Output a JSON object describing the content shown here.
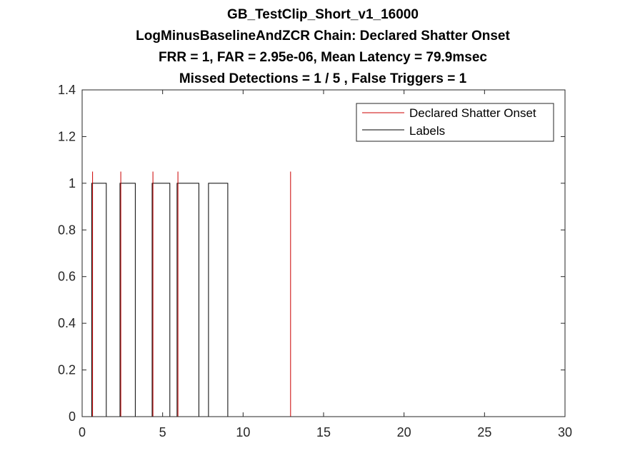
{
  "chart_data": {
    "type": "line",
    "title": [
      "GB_TestClip_Short_v1_16000",
      "LogMinusBaselineAndZCR Chain: Declared Shatter Onset",
      "FRR = 1,  FAR = 2.95e-06,  Mean Latency = 79.9msec",
      "Missed Detections = 1 / 5 , False Triggers = 1"
    ],
    "xlabel": "",
    "ylabel": "",
    "xlim": [
      0,
      30
    ],
    "ylim": [
      0,
      1.4
    ],
    "xticks": [
      0,
      5,
      10,
      15,
      20,
      25,
      30
    ],
    "xtick_labels": [
      "0",
      "5",
      "10",
      "15",
      "20",
      "25",
      "30"
    ],
    "yticks": [
      0,
      0.2,
      0.4,
      0.6,
      0.8,
      1,
      1.2,
      1.4
    ],
    "ytick_labels": [
      "0",
      "0.2",
      "0.4",
      "0.6",
      "0.8",
      "1",
      "1.2",
      "1.4"
    ],
    "grid": false,
    "legend_position": "top-right",
    "series": [
      {
        "name": "Declared Shatter Onset",
        "color": "#cc0000",
        "style": "impulses",
        "x_end": 26.8,
        "onsets": [
          0.65,
          2.4,
          4.4,
          5.95,
          12.95
        ],
        "height": 1.05
      },
      {
        "name": "Labels",
        "color": "#000000",
        "style": "step",
        "x_end": 26.8,
        "segments": [
          [
            0.6,
            1.5
          ],
          [
            2.35,
            3.3
          ],
          [
            4.35,
            5.45
          ],
          [
            5.9,
            7.25
          ],
          [
            7.85,
            9.05
          ]
        ],
        "height": 1
      }
    ]
  }
}
